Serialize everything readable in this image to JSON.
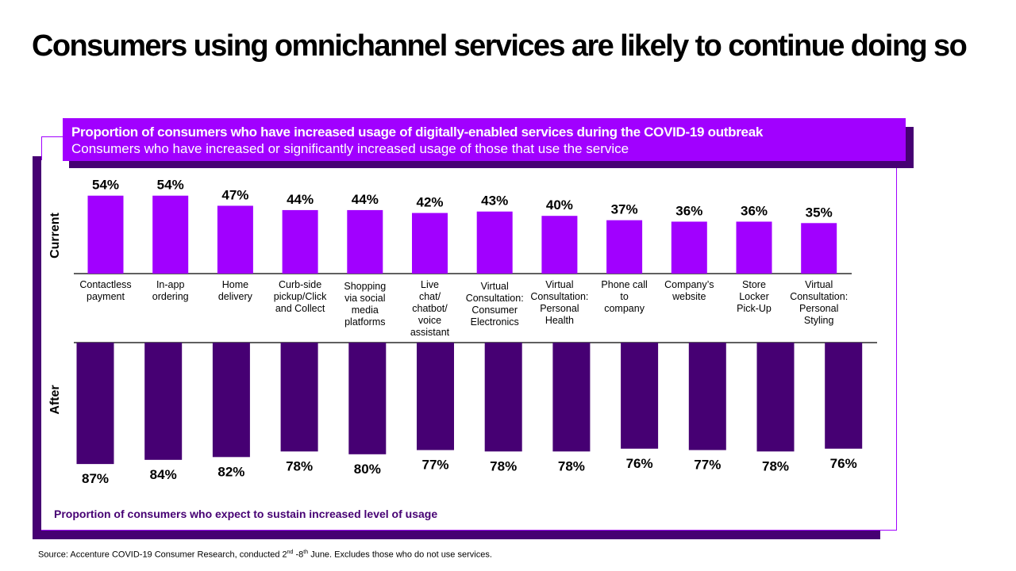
{
  "title": "Consumers using omnichannel services are likely to continue doing so",
  "header": {
    "line1": "Proportion of consumers who have increased usage of digitally-enabled services during the COVID-19 outbreak",
    "line2": "Consumers who have increased or significantly increased usage of those that use the service"
  },
  "footer": {
    "caption": "Proportion of consumers who expect to sustain increased level of usage",
    "source_prefix": "Source: Accenture COVID-19 Consumer Research, conducted 2",
    "source_sup1": "nd",
    "source_mid": " -8",
    "source_sup2": "th",
    "source_suffix": " June. Excludes those who do not use services."
  },
  "colors": {
    "current": "#a100ff",
    "after": "#460073",
    "frame": "#a100ff",
    "shadow": "#460073"
  },
  "chart_data": {
    "type": "bar",
    "title": "Proportion of consumers who have increased usage of digitally-enabled services during the COVID-19 outbreak",
    "subtitle": "Consumers who have increased or significantly increased usage of those that use the service",
    "categories": [
      "Contactless payment",
      "In-app ordering",
      "Home delivery",
      "Curb-side pickup/Click and Collect",
      "Shopping via social media platforms",
      "Live chat/ chatbot/ voice assistant",
      "Virtual Consultation: Consumer Electronics",
      "Virtual Consultation: Personal Health",
      "Phone call to company",
      "Company's website",
      "Store Locker Pick-Up",
      "Virtual Consultation: Personal Styling"
    ],
    "category_lines": [
      [
        "Contactless",
        "payment"
      ],
      [
        "In-app",
        "ordering"
      ],
      [
        "Home",
        "delivery"
      ],
      [
        "Curb-side",
        "pickup/Click",
        "and Collect"
      ],
      [
        "Shopping",
        "via social",
        "media",
        "platforms"
      ],
      [
        "Live",
        "chat/",
        "chatbot/",
        "voice",
        "assistant"
      ],
      [
        "Virtual",
        "Consultation:",
        "Consumer",
        "Electronics"
      ],
      [
        "Virtual",
        "Consultation:",
        "Personal",
        "Health"
      ],
      [
        "Phone call",
        "to",
        "company"
      ],
      [
        "Company’s",
        "website"
      ],
      [
        "Store",
        "Locker",
        "Pick-Up"
      ],
      [
        "Virtual",
        "Consultation:",
        "Personal",
        "Styling"
      ]
    ],
    "series": [
      {
        "name": "Current",
        "values": [
          54,
          54,
          47,
          44,
          44,
          42,
          43,
          40,
          37,
          36,
          36,
          35
        ],
        "labels": [
          "54%",
          "54%",
          "47%",
          "44%",
          "44%",
          "42%",
          "43%",
          "40%",
          "37%",
          "36%",
          "36%",
          "35%"
        ]
      },
      {
        "name": "After",
        "values": [
          87,
          84,
          82,
          78,
          80,
          77,
          78,
          78,
          76,
          77,
          78,
          76
        ],
        "labels": [
          "87%",
          "84%",
          "82%",
          "78%",
          "80%",
          "77%",
          "78%",
          "78%",
          "76%",
          "77%",
          "78%",
          "76%"
        ]
      }
    ],
    "unit": "%",
    "bottom_caption": "Proportion of consumers who expect to sustain increased level of usage",
    "grid": false,
    "legend": "none"
  }
}
